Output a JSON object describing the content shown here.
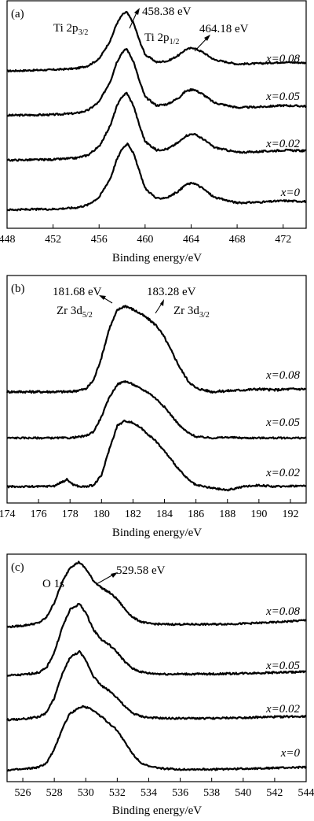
{
  "chart_data": [
    {
      "type": "line",
      "panel": "(a)",
      "xlabel": "Binding energy/eV",
      "xlim": [
        448,
        474
      ],
      "xticks": [
        448,
        452,
        456,
        460,
        464,
        468,
        472
      ],
      "series_labels": [
        "x=0.08",
        "x=0.05",
        "x=0.02",
        "x=0"
      ],
      "annotations": [
        {
          "text": "458.38 eV",
          "at": 458.38
        },
        {
          "text": "464.18 eV",
          "at": 464.18
        },
        {
          "main": "Ti 2p",
          "sub": "3/2"
        },
        {
          "main": "Ti 2p",
          "sub": "1/2"
        }
      ],
      "series": [
        {
          "name": "x=0.08",
          "x": [
            448,
            452,
            454,
            455,
            456,
            457,
            457.5,
            458,
            458.38,
            459,
            459.5,
            460,
            461,
            462,
            463,
            463.5,
            464.18,
            465,
            466,
            468,
            470,
            472,
            474
          ],
          "y": [
            0.06,
            0.08,
            0.1,
            0.14,
            0.25,
            0.55,
            0.8,
            0.95,
            1.0,
            0.82,
            0.55,
            0.32,
            0.2,
            0.22,
            0.32,
            0.4,
            0.43,
            0.36,
            0.24,
            0.17,
            0.18,
            0.2,
            0.19
          ]
        },
        {
          "name": "x=0.05",
          "x": [
            448,
            452,
            454,
            455,
            456,
            457,
            457.5,
            458,
            458.4,
            459,
            459.5,
            460,
            461,
            462,
            463,
            463.5,
            464.2,
            465,
            466,
            468,
            470,
            472,
            474
          ],
          "y": [
            0.06,
            0.07,
            0.09,
            0.13,
            0.25,
            0.55,
            0.8,
            0.95,
            1.0,
            0.82,
            0.55,
            0.32,
            0.2,
            0.22,
            0.32,
            0.4,
            0.43,
            0.36,
            0.24,
            0.17,
            0.18,
            0.2,
            0.19
          ]
        },
        {
          "name": "x=0.02",
          "x": [
            448,
            452,
            454,
            455,
            456,
            457,
            457.5,
            458,
            458.4,
            459,
            459.5,
            460,
            461,
            462,
            463,
            463.5,
            464.2,
            465,
            466,
            468,
            470,
            472,
            474
          ],
          "y": [
            0.06,
            0.07,
            0.09,
            0.13,
            0.25,
            0.55,
            0.8,
            0.95,
            1.0,
            0.82,
            0.55,
            0.32,
            0.2,
            0.22,
            0.32,
            0.4,
            0.43,
            0.36,
            0.24,
            0.17,
            0.18,
            0.2,
            0.19
          ]
        },
        {
          "name": "x=0",
          "x": [
            448,
            452,
            454,
            455,
            456,
            457,
            457.5,
            458,
            458.5,
            459,
            459.5,
            460,
            461,
            462,
            463,
            463.5,
            464.2,
            465,
            466,
            468,
            470,
            472,
            474
          ],
          "y": [
            0.04,
            0.05,
            0.07,
            0.11,
            0.22,
            0.5,
            0.75,
            0.92,
            1.0,
            0.85,
            0.6,
            0.35,
            0.2,
            0.22,
            0.32,
            0.4,
            0.43,
            0.35,
            0.22,
            0.14,
            0.15,
            0.17,
            0.16
          ]
        }
      ]
    },
    {
      "type": "line",
      "panel": "(b)",
      "xlabel": "Binding energy/eV",
      "xlim": [
        174,
        193
      ],
      "xticks": [
        174,
        176,
        178,
        180,
        182,
        184,
        186,
        188,
        190,
        192
      ],
      "series_labels": [
        "x=0.08",
        "x=0.05",
        "x=0.02"
      ],
      "annotations": [
        {
          "text": "181.68 eV",
          "at": 181.68
        },
        {
          "text": "183.28 eV",
          "at": 183.28
        },
        {
          "main": "Zr 3d",
          "sub": "5/2"
        },
        {
          "main": "Zr 3d",
          "sub": "3/2"
        }
      ],
      "series": [
        {
          "name": "x=0.08",
          "x": [
            174,
            176,
            177,
            178,
            179,
            179.5,
            180,
            180.5,
            181,
            181.5,
            182,
            182.5,
            183,
            183.5,
            184,
            184.5,
            185,
            185.5,
            186,
            187,
            188,
            189,
            190,
            191,
            192,
            193
          ],
          "y": [
            0.02,
            0.02,
            0.02,
            0.02,
            0.05,
            0.15,
            0.4,
            0.72,
            0.92,
            0.97,
            0.93,
            0.88,
            0.82,
            0.75,
            0.62,
            0.45,
            0.28,
            0.14,
            0.06,
            0.02,
            0.03,
            0.04,
            0.05,
            0.04,
            0.05,
            0.05
          ]
        },
        {
          "name": "x=0.05",
          "x": [
            174,
            176,
            177,
            178,
            179,
            179.5,
            180,
            180.5,
            181,
            181.5,
            182,
            182.5,
            183,
            183.5,
            184,
            184.5,
            185,
            185.5,
            186,
            187,
            188,
            189,
            190,
            191,
            192,
            193
          ],
          "y": [
            0.02,
            0.02,
            0.02,
            0.02,
            0.05,
            0.12,
            0.35,
            0.65,
            0.85,
            0.9,
            0.85,
            0.78,
            0.72,
            0.62,
            0.5,
            0.35,
            0.2,
            0.1,
            0.04,
            0.02,
            0.03,
            0.02,
            0.02,
            0.02,
            0.02,
            0.02
          ]
        },
        {
          "name": "x=0.02",
          "x": [
            174,
            176,
            177,
            177.8,
            178.2,
            178.6,
            179,
            179.5,
            180,
            180.5,
            181,
            181.5,
            182,
            182.5,
            183,
            183.5,
            184,
            184.5,
            185,
            185.5,
            186,
            187,
            188,
            189,
            190,
            191,
            192,
            193
          ],
          "y": [
            0.02,
            0.02,
            0.03,
            0.12,
            0.05,
            0.02,
            0.02,
            0.04,
            0.18,
            0.55,
            0.88,
            0.95,
            0.92,
            0.85,
            0.75,
            0.65,
            0.52,
            0.38,
            0.24,
            0.12,
            0.04,
            0.0,
            -0.03,
            0.02,
            0.04,
            0.02,
            0.03,
            0.03
          ]
        }
      ]
    },
    {
      "type": "line",
      "panel": "(c)",
      "xlabel": "Binding energy/eV",
      "xlim": [
        525,
        544
      ],
      "xticks": [
        526,
        528,
        530,
        532,
        534,
        536,
        538,
        540,
        542,
        544
      ],
      "series_labels": [
        "x=0.08",
        "x=0.05",
        "x=0.02",
        "x=0"
      ],
      "annotations": [
        {
          "text": "529.58 eV",
          "at": 529.58
        },
        {
          "text": "O 1s"
        }
      ],
      "series": [
        {
          "name": "x=0.08",
          "x": [
            525,
            526,
            527,
            527.5,
            528,
            528.5,
            529,
            529.58,
            530,
            530.5,
            531,
            531.5,
            532,
            532.5,
            533,
            533.5,
            534,
            535,
            536,
            538,
            540,
            542,
            544
          ],
          "y": [
            0.04,
            0.06,
            0.1,
            0.18,
            0.4,
            0.7,
            0.92,
            1.0,
            0.9,
            0.72,
            0.62,
            0.55,
            0.45,
            0.3,
            0.18,
            0.12,
            0.09,
            0.08,
            0.08,
            0.08,
            0.09,
            0.11,
            0.14
          ]
        },
        {
          "name": "x=0.05",
          "x": [
            525,
            526,
            527,
            527.5,
            528,
            528.5,
            529,
            529.6,
            530,
            530.5,
            531,
            531.5,
            532,
            532.5,
            533,
            533.5,
            534,
            535,
            536,
            538,
            540,
            542,
            544
          ],
          "y": [
            0.04,
            0.05,
            0.08,
            0.14,
            0.35,
            0.68,
            0.92,
            1.0,
            0.88,
            0.65,
            0.52,
            0.45,
            0.35,
            0.22,
            0.13,
            0.09,
            0.07,
            0.06,
            0.06,
            0.06,
            0.07,
            0.08,
            0.09
          ]
        },
        {
          "name": "x=0.02",
          "x": [
            525,
            526,
            527,
            527.5,
            528,
            528.5,
            529,
            529.6,
            530,
            530.5,
            531,
            531.5,
            532,
            532.5,
            533,
            533.5,
            534,
            535,
            536,
            538,
            540,
            542,
            544
          ],
          "y": [
            0.04,
            0.05,
            0.08,
            0.14,
            0.35,
            0.68,
            0.92,
            1.0,
            0.88,
            0.65,
            0.52,
            0.45,
            0.35,
            0.22,
            0.13,
            0.09,
            0.07,
            0.06,
            0.06,
            0.06,
            0.07,
            0.08,
            0.09
          ]
        },
        {
          "name": "x=0",
          "x": [
            525,
            526,
            527,
            527.5,
            528,
            528.5,
            529,
            529.8,
            530.3,
            531,
            531.5,
            532,
            532.5,
            533,
            533.5,
            534,
            535,
            536,
            538,
            540,
            542,
            544
          ],
          "y": [
            0.02,
            0.03,
            0.06,
            0.12,
            0.32,
            0.62,
            0.85,
            0.95,
            0.92,
            0.8,
            0.7,
            0.6,
            0.42,
            0.25,
            0.13,
            0.07,
            0.04,
            0.03,
            0.03,
            0.04,
            0.05,
            0.06
          ]
        }
      ]
    }
  ]
}
